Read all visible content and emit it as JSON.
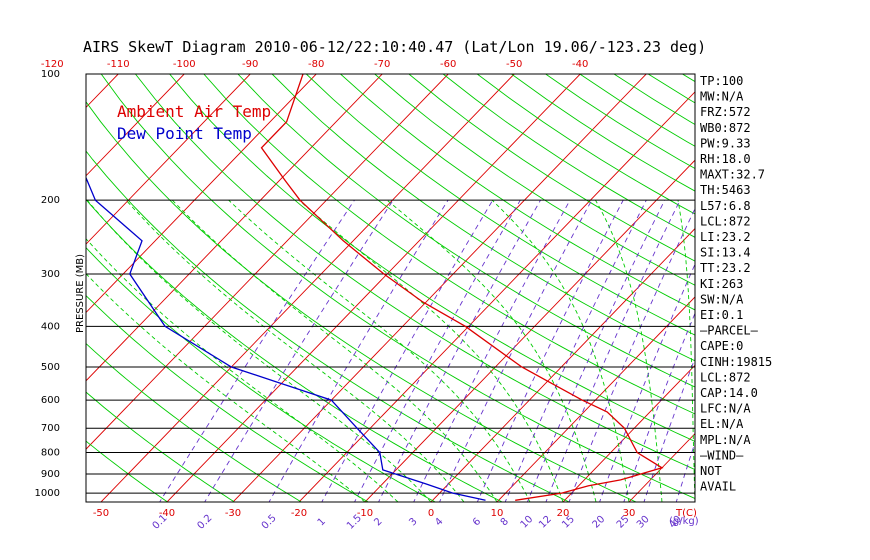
{
  "chart_data": {
    "type": "line",
    "title": "AIRS SkewT Diagram 2010-06-12/22:10:40.47 (Lat/Lon 19.06/-123.23 deg)",
    "ylabel": "PRESSURE (MB)",
    "y_scale": "log",
    "ylim": [
      1050,
      100
    ],
    "pressure_ticks": [
      100,
      200,
      300,
      400,
      500,
      600,
      700,
      800,
      900,
      1000
    ],
    "top_temperature_ticks": [
      -120,
      -110,
      -100,
      -90,
      -80,
      -70,
      -60,
      -50,
      -40
    ],
    "bottom_temperature_ticks": [
      -50,
      -40,
      -30,
      -20,
      -10,
      0,
      10,
      20,
      30
    ],
    "bottom_temperature_unit": "T(C)",
    "mixing_ratio_ticks": [
      "0.1",
      "0.2",
      "0.5",
      "1",
      "1.5",
      "2",
      "3",
      "4",
      "6",
      "8",
      "10",
      "12",
      "15",
      "20",
      "25",
      "30",
      "40"
    ],
    "mixing_ratio_unit": "(g/kg)",
    "colors": {
      "temperature": "#dd0000",
      "dewpoint": "#0000cc",
      "isotherm": "#dd0000",
      "dry_adiabat": "#00cc00",
      "moist_adiabat": "#00cc00",
      "mixing_ratio": "#6633cc",
      "isobar": "#000000"
    },
    "legend": [
      {
        "label": "Ambient Air Temp",
        "color": "#dd0000"
      },
      {
        "label": "Dew Point Temp",
        "color": "#0000cc"
      }
    ],
    "legend_position": "top-left",
    "series": [
      {
        "name": "Ambient Air Temp",
        "points": [
          {
            "p": 1040,
            "t": 12.5
          },
          {
            "p": 1000,
            "t": 18.5
          },
          {
            "p": 960,
            "t": 21.5
          },
          {
            "p": 930,
            "t": 25.5
          },
          {
            "p": 870,
            "t": 30.0
          },
          {
            "p": 800,
            "t": 24.0
          },
          {
            "p": 700,
            "t": 18.5
          },
          {
            "p": 640,
            "t": 13.5
          },
          {
            "p": 600,
            "t": 8.0
          },
          {
            "p": 500,
            "t": -6.0
          },
          {
            "p": 400,
            "t": -20.5
          },
          {
            "p": 350,
            "t": -30.5
          },
          {
            "p": 300,
            "t": -40.5
          },
          {
            "p": 250,
            "t": -51.5
          },
          {
            "p": 200,
            "t": -64.0
          },
          {
            "p": 180,
            "t": -69.0
          },
          {
            "p": 150,
            "t": -77.5
          },
          {
            "p": 130,
            "t": -77.5
          },
          {
            "p": 100,
            "t": -82.0
          }
        ]
      },
      {
        "name": "Dew Point Temp",
        "points": [
          {
            "p": 1040,
            "t": 8.0
          },
          {
            "p": 1000,
            "t": 2.0
          },
          {
            "p": 950,
            "t": -3.5
          },
          {
            "p": 880,
            "t": -12.0
          },
          {
            "p": 800,
            "t": -15.0
          },
          {
            "p": 700,
            "t": -22.0
          },
          {
            "p": 600,
            "t": -30.0
          },
          {
            "p": 500,
            "t": -50.0
          },
          {
            "p": 400,
            "t": -66.0
          },
          {
            "p": 300,
            "t": -79.0
          },
          {
            "p": 250,
            "t": -82.0
          },
          {
            "p": 200,
            "t": -95.0
          },
          {
            "p": 150,
            "t": -106.0
          },
          {
            "p": 100,
            "t": -121.0
          }
        ]
      }
    ],
    "indices": [
      "TP:100",
      "MW:N/A",
      "FRZ:572",
      "WB0:872",
      "PW:9.33",
      "RH:18.0",
      "MAXT:32.7",
      "TH:5463",
      "L57:6.8",
      "LCL:872",
      "LI:23.2",
      "SI:13.4",
      "TT:23.2",
      "KI:263",
      "SW:N/A",
      "EI:0.1",
      "—PARCEL—",
      "CAPE:0",
      "CINH:19815",
      "LCL:872",
      "CAP:14.0",
      "LFC:N/A",
      "EL:N/A",
      "MPL:N/A",
      "—WIND—",
      "NOT",
      "AVAIL"
    ]
  }
}
